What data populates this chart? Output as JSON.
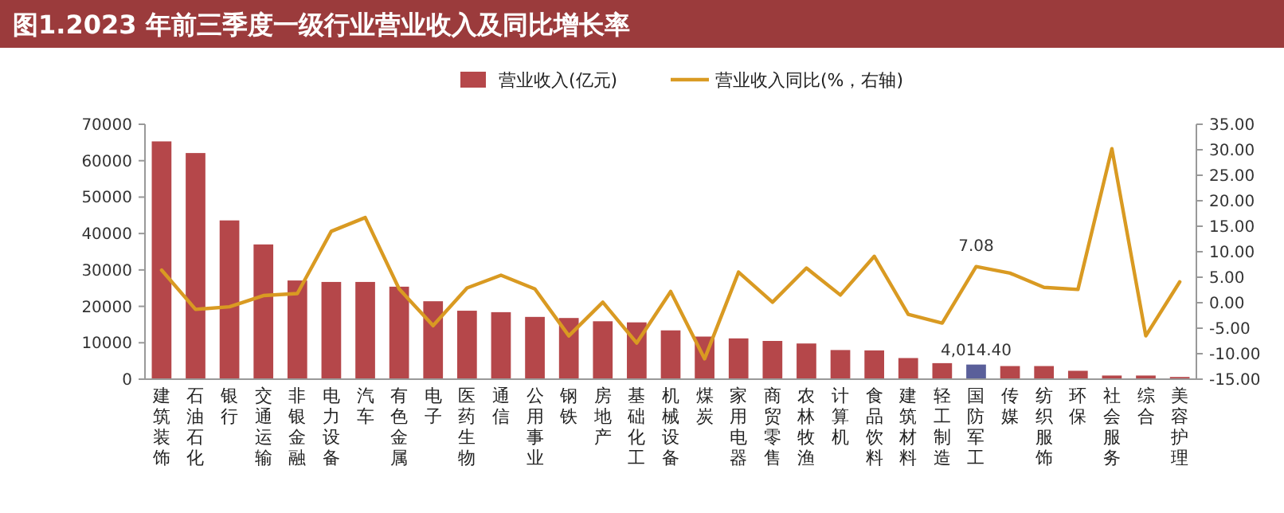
{
  "chart_data": {
    "type": "bar",
    "title": "图1.2023 年前三季度一级行业营业收入及同比增长率",
    "categories": [
      "建筑装饰",
      "石油石化",
      "银行",
      "交通运输",
      "非银金融",
      "电力设备",
      "汽车",
      "有色金属",
      "电子",
      "医药生物",
      "通信",
      "公用事业",
      "钢铁",
      "房地产",
      "基础化工",
      "机械设备",
      "煤炭",
      "家用电器",
      "商贸零售",
      "农林牧渔",
      "计算机",
      "食品饮料",
      "建筑材料",
      "轻工制造",
      "国防军工",
      "传媒",
      "纺织服饰",
      "环保",
      "社会服务",
      "综合",
      "美容护理"
    ],
    "series": [
      {
        "name": "营业收入(亿元)",
        "color": "#b5474a",
        "colors": [
          "#b5474a",
          "#b5474a",
          "#b5474a",
          "#b5474a",
          "#b5474a",
          "#b5474a",
          "#b5474a",
          "#b5474a",
          "#b5474a",
          "#b5474a",
          "#b5474a",
          "#b5474a",
          "#b5474a",
          "#b5474a",
          "#b5474a",
          "#b5474a",
          "#b5474a",
          "#b5474a",
          "#b5474a",
          "#b5474a",
          "#b5474a",
          "#b5474a",
          "#b5474a",
          "#b5474a",
          "#5a5f9a",
          "#b5474a",
          "#b5474a",
          "#b5474a",
          "#b5474a",
          "#b5474a",
          "#b5474a"
        ],
        "values": [
          65300,
          62100,
          43600,
          37000,
          27100,
          26700,
          26700,
          25400,
          21400,
          18800,
          18400,
          17100,
          16800,
          15900,
          15600,
          13400,
          11700,
          11200,
          10500,
          9800,
          8000,
          7900,
          5800,
          4400,
          4014.4,
          3600,
          3600,
          2300,
          1000,
          1000,
          600
        ],
        "value_labels": [
          null,
          null,
          null,
          null,
          null,
          null,
          null,
          null,
          null,
          null,
          null,
          null,
          null,
          null,
          null,
          null,
          null,
          null,
          null,
          null,
          null,
          null,
          null,
          null,
          "4,014.40",
          null,
          null,
          null,
          null,
          null,
          null
        ]
      },
      {
        "name": "营业收入同比(%，右轴)",
        "type": "line",
        "axis": "y2",
        "color": "#d99a22",
        "values": [
          6.4,
          -1.3,
          -0.8,
          1.4,
          1.8,
          14.0,
          16.7,
          2.7,
          -4.5,
          2.9,
          5.4,
          2.7,
          -6.5,
          0.1,
          -7.9,
          2.2,
          -11.0,
          6.0,
          0.1,
          6.8,
          1.5,
          9.1,
          -2.3,
          -4.0,
          7.08,
          5.8,
          3.0,
          2.6,
          30.2,
          -6.5,
          4.1
        ],
        "value_labels": [
          null,
          null,
          null,
          null,
          null,
          null,
          null,
          null,
          null,
          null,
          null,
          null,
          null,
          null,
          null,
          null,
          null,
          null,
          null,
          null,
          null,
          null,
          null,
          null,
          "7.08",
          null,
          null,
          null,
          null,
          null,
          null
        ]
      }
    ],
    "ylim": [
      0,
      70000
    ],
    "yticks": [
      0,
      10000,
      20000,
      30000,
      40000,
      50000,
      60000,
      70000
    ],
    "y2lim": [
      -15,
      35
    ],
    "y2ticks": [
      {
        "value": -15,
        "label": "-15.00"
      },
      {
        "value": -10,
        "label": "-10.00"
      },
      {
        "value": -5,
        "label": "-5.00"
      },
      {
        "value": 0,
        "label": "0.00"
      },
      {
        "value": 5,
        "label": "5.00"
      },
      {
        "value": 10,
        "label": "10.00"
      },
      {
        "value": 15,
        "label": "15.00"
      },
      {
        "value": 20,
        "label": "20.00"
      },
      {
        "value": 25,
        "label": "25.00"
      },
      {
        "value": 30,
        "label": "30.00"
      },
      {
        "value": 35,
        "label": "35.00"
      }
    ],
    "legend": "top",
    "grid": false
  }
}
